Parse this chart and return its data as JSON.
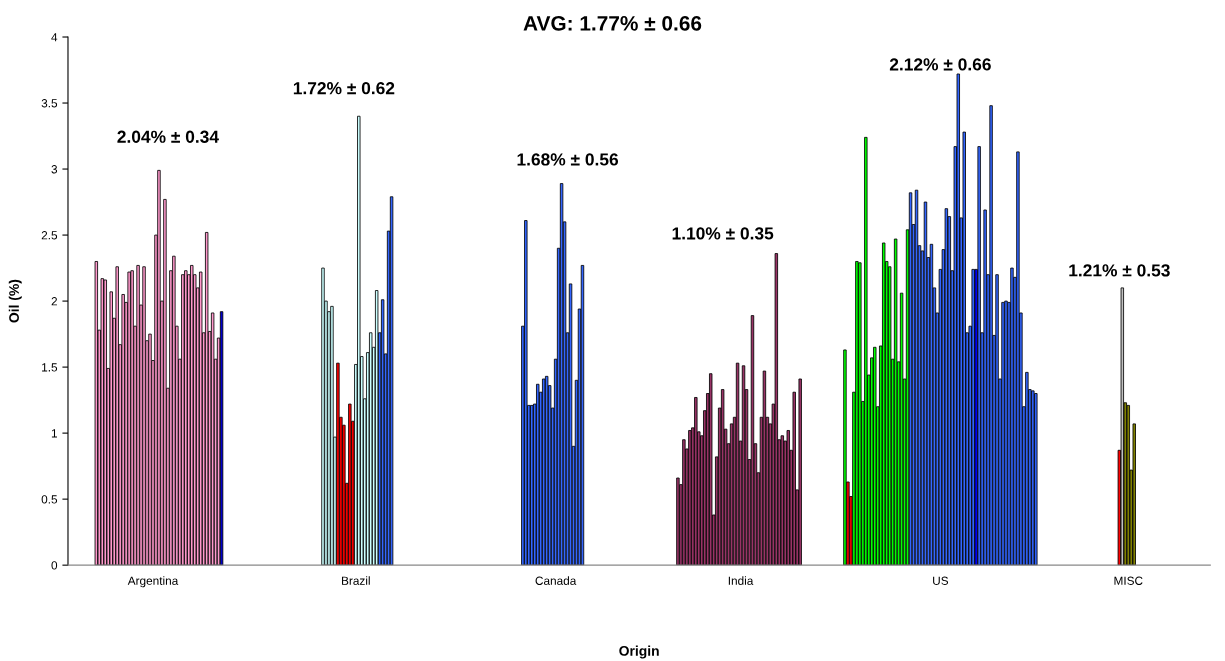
{
  "chart_data": {
    "type": "bar",
    "title": "AVG: 1.77% ± 0.66",
    "xlabel": "Origin",
    "ylabel": "Oil (%)",
    "ylim": [
      0,
      4
    ],
    "yticks": [
      0,
      0.5,
      1,
      1.5,
      2,
      2.5,
      3,
      3.5,
      4
    ],
    "grid": false,
    "categories": [
      null,
      null,
      null,
      null,
      null,
      null,
      null,
      null,
      null,
      null,
      null,
      null,
      null,
      null,
      null,
      null,
      null,
      null,
      null,
      null,
      null,
      null,
      null,
      null,
      null,
      null,
      null,
      null,
      "Argentina",
      null,
      null,
      null,
      null,
      null,
      null,
      null,
      null,
      null,
      null,
      null,
      null,
      null,
      null,
      null,
      null,
      null,
      null,
      null,
      null,
      null,
      null,
      null,
      null,
      null,
      null,
      null,
      null,
      null,
      null,
      null,
      null,
      null,
      null,
      null,
      null,
      null,
      null,
      null,
      null,
      null,
      null,
      null,
      null,
      null,
      null,
      null,
      null,
      null,
      null,
      null,
      null,
      null,
      null,
      null,
      null,
      null,
      null,
      null,
      null,
      null,
      null,
      null,
      null,
      null,
      null,
      null,
      "Brazil",
      null,
      null,
      null,
      null,
      null,
      null,
      null,
      null,
      null,
      null,
      null,
      null,
      null,
      null,
      null,
      null,
      null,
      null,
      null,
      null,
      null,
      null,
      null,
      null,
      null,
      null,
      null,
      null,
      null,
      null,
      null,
      null,
      null,
      null,
      null,
      null,
      null,
      null,
      null,
      null,
      null,
      null,
      null,
      null,
      null,
      null,
      null,
      null,
      null,
      null,
      null,
      null,
      null,
      null,
      null,
      null,
      null,
      null,
      null,
      null,
      null,
      null,
      null,
      null,
      null,
      null,
      "Canada",
      null,
      null,
      null,
      null,
      null,
      null,
      null,
      null,
      null,
      null,
      null,
      null,
      null,
      null,
      null,
      null,
      null,
      null,
      null,
      null,
      null,
      null,
      null,
      null,
      null,
      null,
      null,
      null,
      null,
      null,
      null,
      null,
      null,
      null,
      null,
      null,
      null,
      null,
      null,
      null,
      null,
      null,
      null,
      null,
      null,
      null,
      null,
      null,
      null,
      null,
      null,
      null,
      null,
      null,
      null,
      null,
      null,
      null,
      null,
      null,
      null,
      "India",
      null,
      null,
      null,
      null,
      null,
      null,
      null,
      null,
      null,
      null,
      null,
      null,
      null,
      null,
      null,
      null,
      null,
      null,
      null,
      null,
      null,
      null,
      null,
      null,
      null,
      null,
      null,
      null,
      null,
      null,
      null,
      null,
      null,
      null,
      null,
      null,
      null,
      null,
      null,
      null,
      null,
      null,
      null,
      null,
      null,
      null,
      null,
      null,
      null,
      null,
      null,
      null,
      null,
      null,
      null,
      null,
      null,
      null,
      null,
      null,
      null,
      null,
      null,
      null,
      null,
      null,
      "US",
      null,
      null,
      null,
      null,
      null,
      null,
      null,
      null,
      null,
      null,
      null,
      null,
      null,
      null,
      null,
      null,
      null,
      null,
      null,
      null,
      null,
      null,
      null,
      null,
      null,
      null,
      null,
      null,
      null,
      null,
      null,
      null,
      null,
      null,
      null,
      null,
      null,
      null,
      null,
      null,
      null,
      null,
      null,
      null,
      null,
      null,
      null,
      null,
      null,
      null,
      null,
      null,
      null,
      null,
      null,
      null,
      null,
      null,
      null,
      null,
      null,
      null,
      "MISC",
      null,
      null,
      null,
      null,
      null,
      null,
      null,
      null,
      null,
      null,
      null,
      null,
      null,
      null,
      null,
      null,
      null,
      null,
      null,
      null,
      null,
      null,
      null,
      null,
      null,
      null,
      null
    ],
    "values": [
      null,
      null,
      null,
      null,
      null,
      null,
      null,
      null,
      null,
      2.3,
      1.78,
      2.17,
      2.16,
      1.49,
      2.07,
      1.87,
      2.26,
      1.67,
      2.05,
      1.99,
      2.22,
      2.23,
      1.81,
      2.27,
      1.97,
      2.26,
      1.7,
      1.75,
      1.55,
      2.5,
      2.99,
      2.0,
      2.77,
      1.34,
      2.23,
      2.34,
      1.81,
      1.56,
      2.2,
      2.23,
      2.2,
      2.27,
      2.2,
      2.1,
      2.22,
      1.76,
      2.52,
      1.77,
      1.91,
      1.56,
      1.72,
      1.92,
      null,
      null,
      null,
      null,
      null,
      null,
      null,
      null,
      null,
      null,
      null,
      null,
      null,
      null,
      null,
      null,
      null,
      null,
      null,
      null,
      null,
      null,
      null,
      null,
      null,
      null,
      null,
      null,
      null,
      null,
      null,
      null,
      null,
      2.25,
      2.0,
      1.92,
      1.96,
      0.97,
      1.53,
      1.12,
      1.06,
      0.62,
      1.22,
      1.09,
      1.52,
      3.4,
      1.58,
      1.26,
      1.61,
      1.76,
      1.65,
      2.08,
      1.76,
      2.01,
      1.6,
      2.53,
      2.79,
      null,
      null,
      null,
      null,
      null,
      null,
      null,
      null,
      null,
      null,
      null,
      null,
      null,
      null,
      null,
      null,
      null,
      null,
      null,
      null,
      null,
      null,
      null,
      null,
      null,
      null,
      null,
      null,
      null,
      null,
      null,
      null,
      null,
      null,
      null,
      null,
      null,
      null,
      null,
      null,
      null,
      null,
      null,
      1.81,
      2.61,
      1.21,
      1.21,
      1.22,
      1.37,
      1.31,
      1.41,
      1.43,
      1.36,
      1.19,
      1.56,
      2.4,
      2.89,
      2.6,
      1.76,
      2.13,
      0.9,
      1.4,
      1.94,
      2.27,
      null,
      null,
      null,
      null,
      null,
      null,
      null,
      null,
      null,
      null,
      null,
      null,
      null,
      null,
      null,
      null,
      null,
      null,
      null,
      null,
      null,
      null,
      null,
      null,
      null,
      null,
      null,
      null,
      null,
      null,
      null,
      0.66,
      0.61,
      0.95,
      0.88,
      1.02,
      1.04,
      1.27,
      1.01,
      0.98,
      1.17,
      1.3,
      1.45,
      0.38,
      0.82,
      1.19,
      1.33,
      1.03,
      0.92,
      1.07,
      1.12,
      1.53,
      0.94,
      1.51,
      1.33,
      0.8,
      1.89,
      0.92,
      0.7,
      1.12,
      1.47,
      1.12,
      1.07,
      1.22,
      2.36,
      0.95,
      0.98,
      0.94,
      1.02,
      0.87,
      1.31,
      0.57,
      1.41,
      null,
      null,
      null,
      null,
      null,
      null,
      null,
      null,
      null,
      null,
      null,
      null,
      null,
      null,
      1.63,
      0.63,
      0.52,
      1.31,
      2.3,
      2.29,
      1.24,
      3.24,
      1.44,
      1.57,
      1.65,
      1.2,
      1.66,
      2.44,
      2.3,
      2.26,
      1.56,
      2.47,
      1.54,
      2.06,
      1.41,
      2.54,
      2.82,
      2.58,
      2.84,
      2.42,
      2.38,
      2.75,
      2.33,
      2.43,
      2.1,
      1.91,
      2.24,
      2.39,
      2.7,
      2.64,
      2.23,
      3.17,
      3.72,
      2.63,
      3.28,
      1.76,
      1.81,
      2.24,
      2.24,
      3.17,
      1.76,
      2.69,
      2.2,
      3.48,
      1.74,
      2.2,
      1.41,
      1.99,
      2.0,
      1.99,
      2.25,
      2.18,
      3.13,
      1.91,
      1.2,
      1.46,
      1.33,
      1.32,
      1.3,
      null,
      null,
      null,
      null,
      null,
      null,
      null,
      null,
      null,
      null,
      null,
      null,
      null,
      null,
      null,
      null,
      null,
      null,
      null,
      null,
      null,
      null,
      null,
      null,
      null,
      null,
      null,
      0.87,
      2.1,
      1.23,
      1.21,
      0.72,
      1.07,
      null,
      null,
      null,
      null,
      null,
      null,
      null,
      null,
      null,
      null,
      null,
      null,
      null,
      null,
      null,
      null,
      null,
      null,
      null,
      null,
      null,
      null,
      null,
      null,
      null
    ],
    "colors": [
      null,
      null,
      null,
      null,
      null,
      null,
      null,
      null,
      null,
      "#ff99cc",
      "#ff99cc",
      "#ff99cc",
      "#ff99cc",
      "#ff99cc",
      "#ff99cc",
      "#ff99cc",
      "#ff99cc",
      "#ff99cc",
      "#ff99cc",
      "#ff99cc",
      "#ff99cc",
      "#ff99cc",
      "#ff99cc",
      "#ff99cc",
      "#ff99cc",
      "#ff99cc",
      "#ff99cc",
      "#ff99cc",
      "#ff99cc",
      "#ff99cc",
      "#ff99cc",
      "#ff99cc",
      "#ff99cc",
      "#ff99cc",
      "#ff99cc",
      "#ff99cc",
      "#ff99cc",
      "#ff99cc",
      "#ff99cc",
      "#ff99cc",
      "#ff99cc",
      "#ff99cc",
      "#ff99cc",
      "#ff99cc",
      "#ff99cc",
      "#ff99cc",
      "#ff99cc",
      "#ff99cc",
      "#ff99cc",
      "#ff99cc",
      "#ff99cc",
      "#0000cc",
      null,
      null,
      null,
      null,
      null,
      null,
      null,
      null,
      null,
      null,
      null,
      null,
      null,
      null,
      null,
      null,
      null,
      null,
      null,
      null,
      null,
      null,
      null,
      null,
      null,
      null,
      null,
      null,
      null,
      null,
      null,
      null,
      null,
      "#ccffff",
      "#ccffff",
      "#ccffff",
      "#ccffff",
      "#ccffff",
      "#ff0000",
      "#ff0000",
      "#ff0000",
      "#ff0000",
      "#ff0000",
      "#ff0000",
      "#ccffff",
      "#ccffff",
      "#ccffff",
      "#ccffff",
      "#ccffff",
      "#ccffff",
      "#ccffff",
      "#ccffff",
      "#3366ff",
      "#3366ff",
      "#3366ff",
      "#3366ff",
      "#3366ff",
      null,
      null,
      null,
      null,
      null,
      null,
      null,
      null,
      null,
      null,
      null,
      null,
      null,
      null,
      null,
      null,
      null,
      null,
      null,
      null,
      null,
      null,
      null,
      null,
      null,
      null,
      null,
      null,
      null,
      null,
      null,
      null,
      null,
      null,
      null,
      null,
      null,
      null,
      null,
      null,
      null,
      null,
      null,
      "#3366ff",
      "#3366ff",
      "#3366ff",
      "#3366ff",
      "#3366ff",
      "#3366ff",
      "#3366ff",
      "#3366ff",
      "#3366ff",
      "#3366ff",
      "#3366ff",
      "#3366ff",
      "#3366ff",
      "#3366ff",
      "#3366ff",
      "#3366ff",
      "#3366ff",
      "#3366ff",
      "#3366ff",
      "#3366ff",
      "#3366ff",
      null,
      null,
      null,
      null,
      null,
      null,
      null,
      null,
      null,
      null,
      null,
      null,
      null,
      null,
      null,
      null,
      null,
      null,
      null,
      null,
      null,
      null,
      null,
      null,
      null,
      null,
      null,
      null,
      null,
      null,
      null,
      "#993366",
      "#993366",
      "#993366",
      "#993366",
      "#993366",
      "#993366",
      "#993366",
      "#993366",
      "#993366",
      "#993366",
      "#993366",
      "#993366",
      "#993366",
      "#993366",
      "#993366",
      "#993366",
      "#993366",
      "#993366",
      "#993366",
      "#993366",
      "#993366",
      "#993366",
      "#993366",
      "#993366",
      "#993366",
      "#993366",
      "#993366",
      "#993366",
      "#993366",
      "#993366",
      "#993366",
      "#993366",
      "#993366",
      "#993366",
      "#993366",
      "#993366",
      "#993366",
      "#993366",
      "#993366",
      "#993366",
      "#993366",
      "#993366",
      null,
      null,
      null,
      null,
      null,
      null,
      null,
      null,
      null,
      null,
      null,
      null,
      null,
      null,
      "#00ff00",
      "#ff0000",
      "#ff0000",
      "#00ff00",
      "#00ff00",
      "#00ff00",
      "#00ff00",
      "#00ff00",
      "#00ff00",
      "#00ff00",
      "#00ff00",
      "#00ff00",
      "#00ff00",
      "#00ff00",
      "#00ff00",
      "#00ff00",
      "#00ff00",
      "#00ff00",
      "#00ff00",
      "#00ff00",
      "#00ff00",
      "#00ff00",
      "#3366ff",
      "#3366ff",
      "#3366ff",
      "#3366ff",
      "#3366ff",
      "#3366ff",
      "#3366ff",
      "#3366ff",
      "#3366ff",
      "#3366ff",
      "#3366ff",
      "#3366ff",
      "#3366ff",
      "#3366ff",
      "#3366ff",
      "#3366ff",
      "#3366ff",
      "#3366ff",
      "#3366ff",
      "#3366ff",
      "#3366ff",
      "#3366ff",
      "#0000ff",
      "#3366ff",
      "#3366ff",
      "#3366ff",
      "#3366ff",
      "#3366ff",
      "#3366ff",
      "#3366ff",
      "#3366ff",
      "#3366ff",
      "#3366ff",
      "#3366ff",
      "#3366ff",
      "#3366ff",
      "#3366ff",
      "#3366ff",
      "#3366ff",
      "#3366ff",
      "#3366ff",
      "#3366ff",
      "#3366ff",
      null,
      null,
      null,
      null,
      null,
      null,
      null,
      null,
      null,
      null,
      null,
      null,
      null,
      null,
      null,
      null,
      null,
      null,
      null,
      null,
      null,
      null,
      null,
      null,
      null,
      null,
      null,
      "#ff0000",
      "#c0c0c0",
      "#808000",
      "#808000",
      "#808000",
      "#808000",
      null,
      null,
      null,
      null,
      null,
      null,
      null,
      null,
      null,
      null,
      null,
      null,
      null,
      null,
      null,
      null,
      null,
      null,
      null,
      null,
      null,
      null,
      null,
      null,
      null
    ],
    "annotations": [
      "2.04% ± 0.34",
      "1.72% ± 0.62",
      "1.68% ± 0.56",
      "1.10% ± 0.35",
      "2.12% ± 0.66",
      "1.21% ± 0.53"
    ]
  }
}
